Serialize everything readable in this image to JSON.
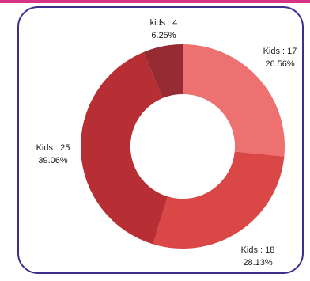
{
  "colors": {
    "top_bar": "#d63384",
    "card_border": "#3b2f8f",
    "hole": "#ffffff"
  },
  "chart_data": {
    "type": "pie",
    "donut": true,
    "slices": [
      {
        "label": "Kids : 17",
        "value": 17,
        "percent": "26.56%",
        "color": "#ec7170"
      },
      {
        "label": "Kids : 18",
        "value": 18,
        "percent": "28.13%",
        "color": "#da4747"
      },
      {
        "label": "Kids : 25",
        "value": 25,
        "percent": "39.06%",
        "color": "#b72f35"
      },
      {
        "label": "kids : 4",
        "value": 4,
        "percent": "6.25%",
        "color": "#962b33"
      }
    ]
  }
}
